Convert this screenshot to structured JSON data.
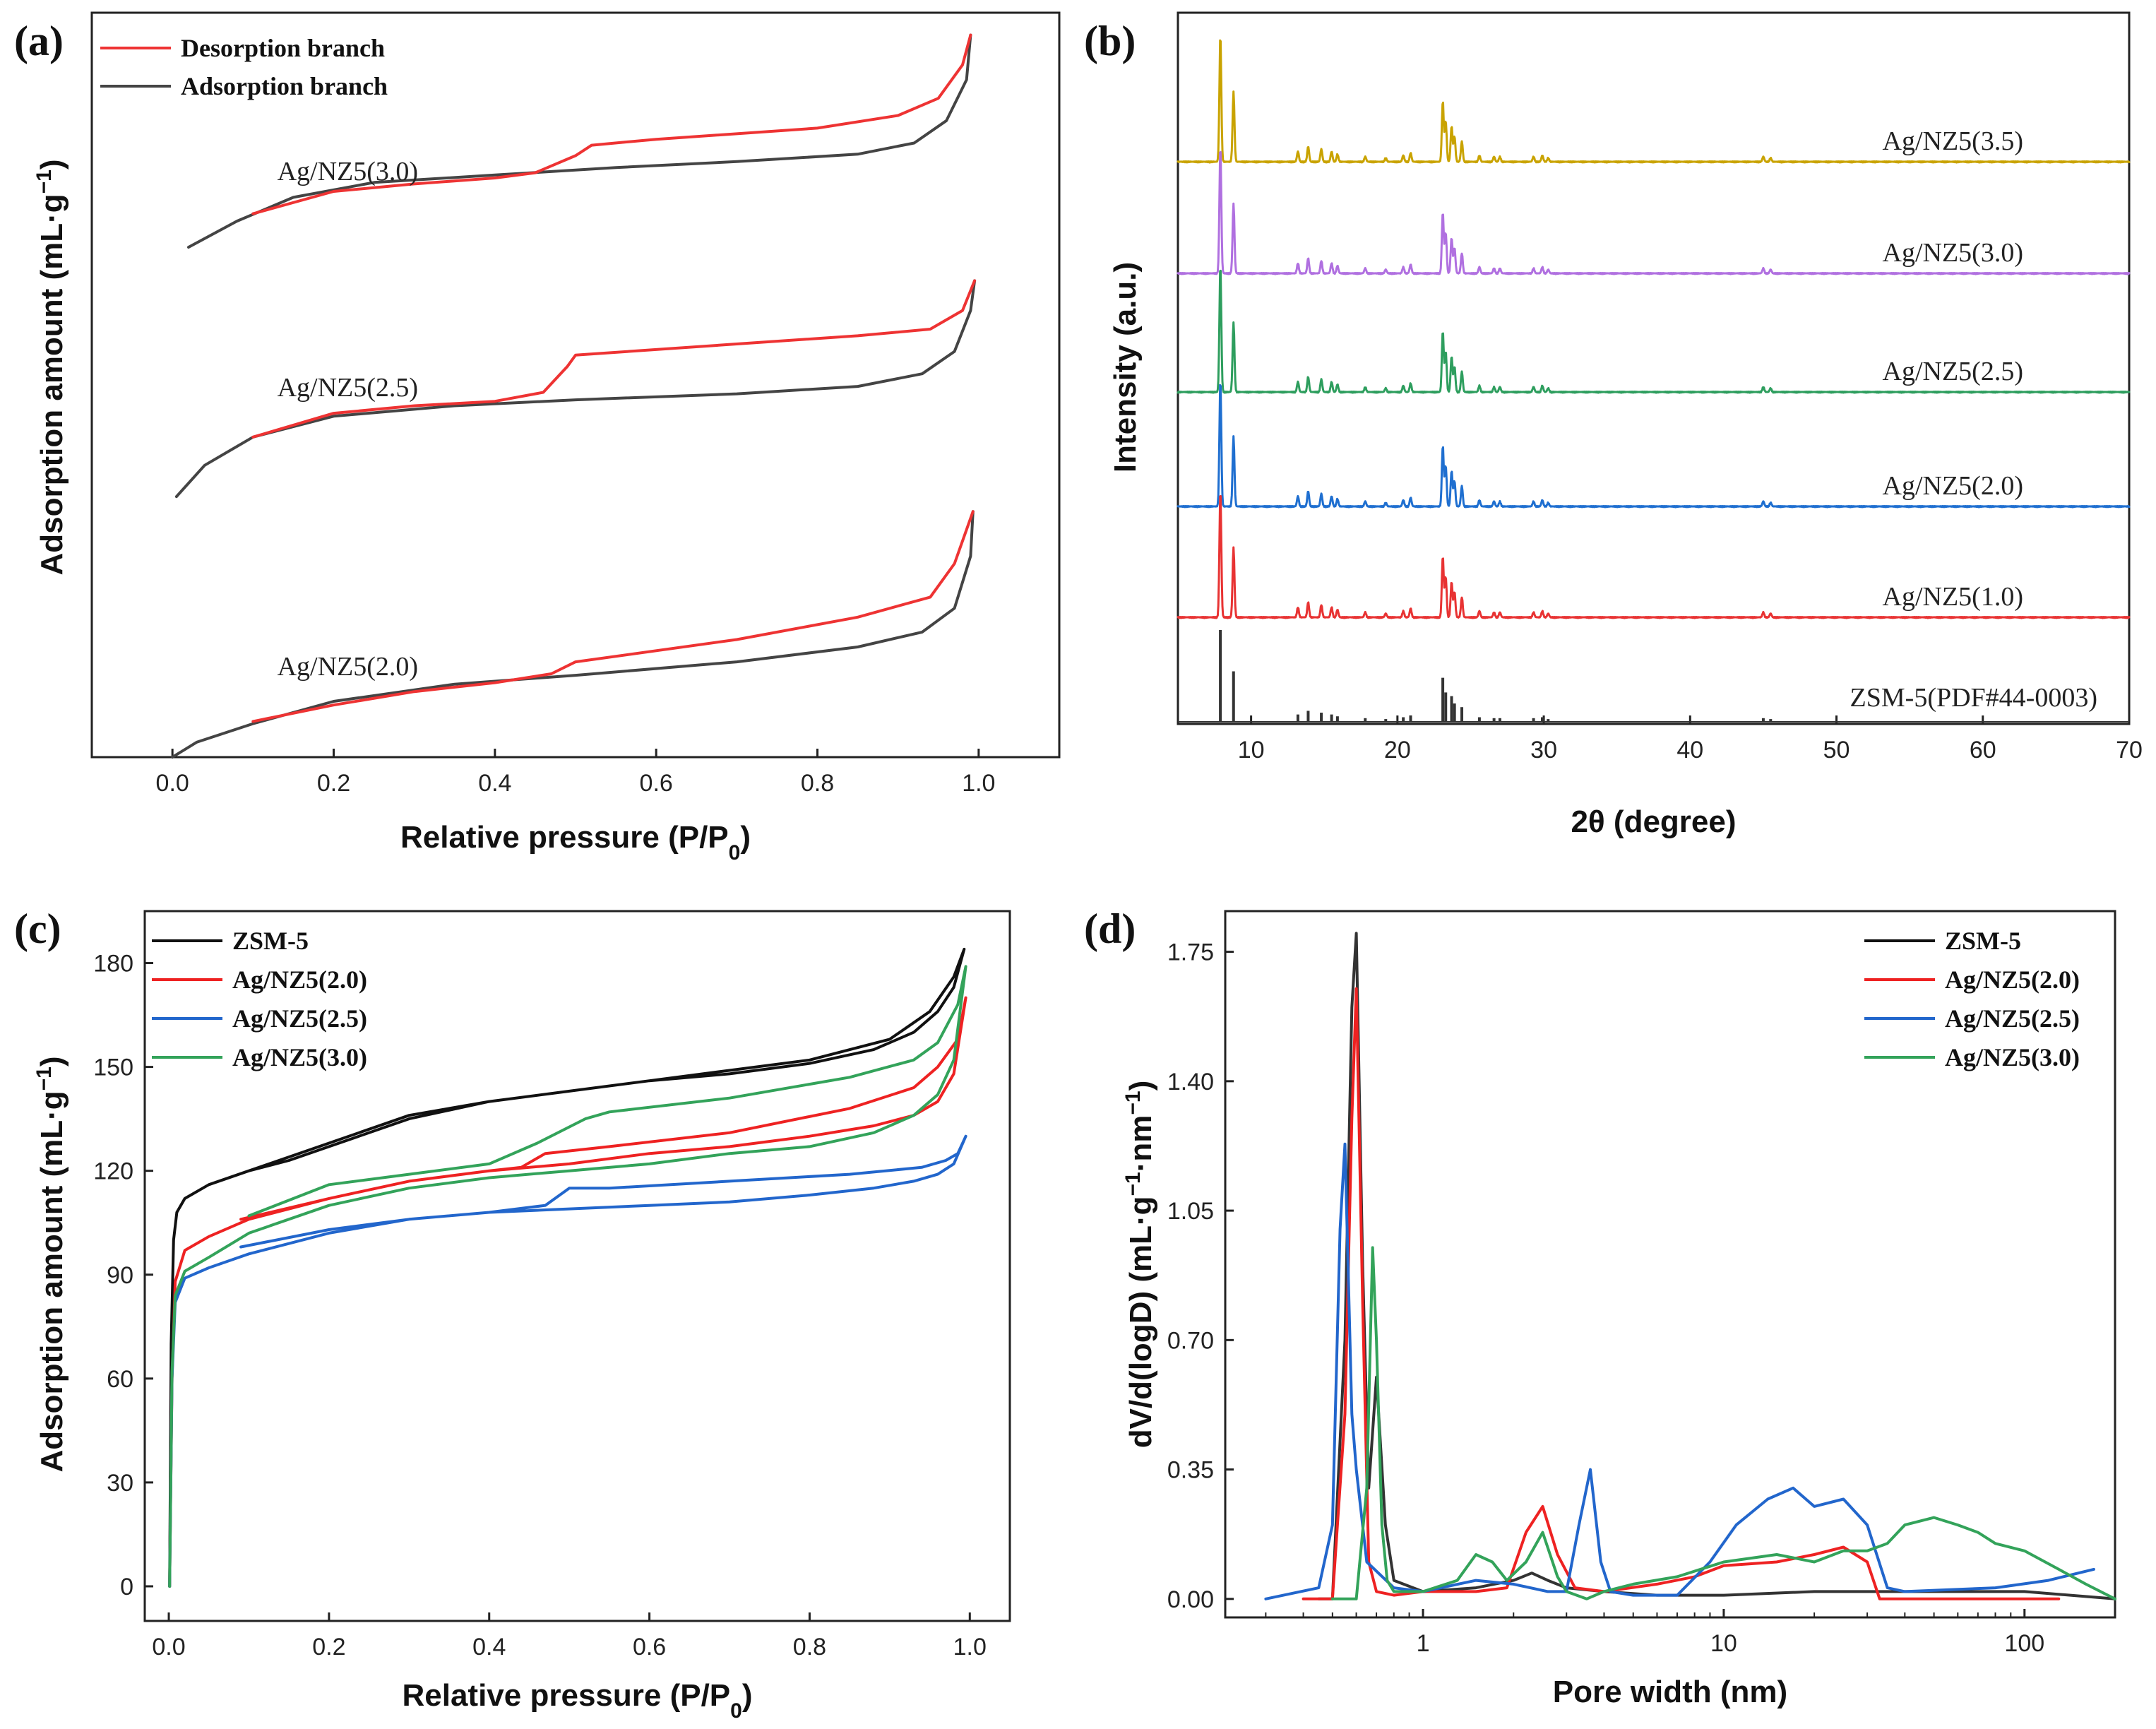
{
  "colors": {
    "black": "#222222",
    "red": "#ee3333",
    "blue": "#2266cc",
    "green": "#33a35a",
    "gold": "#c9a300",
    "purple": "#b070e0",
    "xrd_green": "#2e9e5e",
    "xrd_blue": "#1f6fd0",
    "xrd_red": "#e83333",
    "xrd_ref": "#333333"
  },
  "chart_data": [
    {
      "panel": "(a)",
      "type": "line",
      "xlabel": "Relative pressure (P/P",
      "xlabel_sub": "0",
      "xlabel_end": ")",
      "ylabel": "Adsorption amount (mL·g",
      "ylabel_sup": "−1",
      "ylabel_end": ")",
      "xlim": [
        -0.1,
        1.1
      ],
      "ylim": [
        0,
        1
      ],
      "xticks": [
        0.0,
        0.2,
        0.4,
        0.6,
        0.8,
        1.0
      ],
      "xtick_labels": [
        "0.0",
        "0.2",
        "0.4",
        "0.6",
        "0.8",
        "1.0"
      ],
      "yticks_shown": false,
      "legend": [
        {
          "label": "Desorption branch",
          "color": "#ee3333"
        },
        {
          "label": "Adsorption branch",
          "color": "#444444"
        }
      ],
      "series_labels": [
        {
          "text": "Ag/NZ5(3.0)",
          "x": 0.13,
          "y": 0.775
        },
        {
          "text": "Ag/NZ5(2.5)",
          "x": 0.13,
          "y": 0.485
        },
        {
          "text": "Ag/NZ5(2.0)",
          "x": 0.13,
          "y": 0.11
        }
      ],
      "series": [
        {
          "name": "Ag/NZ5(3.0) adsorption",
          "color": "#444444",
          "x": [
            0.02,
            0.08,
            0.15,
            0.25,
            0.4,
            0.55,
            0.7,
            0.85,
            0.92,
            0.96,
            0.985,
            0.99
          ],
          "y": [
            0.685,
            0.72,
            0.752,
            0.772,
            0.782,
            0.792,
            0.8,
            0.81,
            0.825,
            0.855,
            0.91,
            0.97
          ]
        },
        {
          "name": "Ag/NZ5(3.0) desorption",
          "color": "#ee3333",
          "x": [
            0.99,
            0.98,
            0.95,
            0.9,
            0.8,
            0.6,
            0.52,
            0.5,
            0.45,
            0.4,
            0.3,
            0.2,
            0.1
          ],
          "y": [
            0.97,
            0.93,
            0.885,
            0.862,
            0.845,
            0.83,
            0.822,
            0.808,
            0.785,
            0.778,
            0.77,
            0.76,
            0.73
          ]
        },
        {
          "name": "Ag/NZ5(2.5) adsorption",
          "color": "#444444",
          "x": [
            0.005,
            0.04,
            0.1,
            0.2,
            0.35,
            0.5,
            0.7,
            0.85,
            0.93,
            0.97,
            0.99,
            0.995
          ],
          "y": [
            0.35,
            0.392,
            0.43,
            0.458,
            0.472,
            0.48,
            0.488,
            0.498,
            0.515,
            0.545,
            0.6,
            0.64
          ]
        },
        {
          "name": "Ag/NZ5(2.5) desorption",
          "color": "#ee3333",
          "x": [
            0.995,
            0.98,
            0.94,
            0.85,
            0.7,
            0.5,
            0.49,
            0.46,
            0.4,
            0.3,
            0.2,
            0.1
          ],
          "y": [
            0.64,
            0.6,
            0.575,
            0.566,
            0.555,
            0.54,
            0.525,
            0.49,
            0.478,
            0.472,
            0.462,
            0.43
          ]
        },
        {
          "name": "Ag/NZ5(2.0) adsorption",
          "color": "#444444",
          "x": [
            0.0,
            0.03,
            0.1,
            0.2,
            0.35,
            0.5,
            0.7,
            0.85,
            0.93,
            0.97,
            0.99,
            0.993
          ],
          "y": [
            0.0,
            0.02,
            0.045,
            0.075,
            0.098,
            0.11,
            0.128,
            0.148,
            0.168,
            0.2,
            0.27,
            0.33
          ]
        },
        {
          "name": "Ag/NZ5(2.0) desorption",
          "color": "#ee3333",
          "x": [
            0.993,
            0.97,
            0.94,
            0.85,
            0.7,
            0.5,
            0.47,
            0.4,
            0.3,
            0.2,
            0.1
          ],
          "y": [
            0.33,
            0.26,
            0.215,
            0.188,
            0.158,
            0.128,
            0.112,
            0.1,
            0.088,
            0.07,
            0.048
          ]
        }
      ]
    },
    {
      "panel": "(b)",
      "type": "line",
      "xlabel": "2θ (degree)",
      "ylabel": "Intensity (a.u.)",
      "xlim": [
        5,
        70
      ],
      "xticks": [
        10,
        20,
        30,
        40,
        50,
        60,
        70
      ],
      "xtick_labels": [
        "10",
        "20",
        "30",
        "40",
        "50",
        "60",
        "70"
      ],
      "yticks_shown": false,
      "peaks_2theta": [
        7.9,
        8.8,
        13.2,
        13.9,
        14.8,
        15.5,
        15.9,
        17.8,
        19.2,
        20.4,
        20.9,
        23.1,
        23.3,
        23.7,
        23.9,
        24.4,
        25.6,
        26.6,
        27.0,
        29.3,
        29.9,
        30.3,
        45.0,
        45.5
      ],
      "peak_heights": [
        1.0,
        0.55,
        0.08,
        0.12,
        0.1,
        0.08,
        0.06,
        0.04,
        0.03,
        0.05,
        0.07,
        0.48,
        0.32,
        0.28,
        0.2,
        0.16,
        0.05,
        0.04,
        0.04,
        0.04,
        0.05,
        0.03,
        0.04,
        0.03
      ],
      "series": [
        {
          "name": "Ag/NZ5(3.5)",
          "color": "#c9a300"
        },
        {
          "name": "Ag/NZ5(3.0)",
          "color": "#b070e0"
        },
        {
          "name": "Ag/NZ5(2.5)",
          "color": "#2e9e5e"
        },
        {
          "name": "Ag/NZ5(2.0)",
          "color": "#1f6fd0"
        },
        {
          "name": "Ag/NZ5(1.0)",
          "color": "#e83333"
        },
        {
          "name": "ZSM-5(PDF#44-0003)",
          "color": "#333333"
        }
      ]
    },
    {
      "panel": "(c)",
      "type": "line",
      "xlabel": "Relative pressure (P/P",
      "xlabel_sub": "0",
      "xlabel_end": ")",
      "ylabel": "Adsorption amount (mL·g",
      "ylabel_sup": "−1",
      "ylabel_end": ")",
      "xlim": [
        -0.03,
        1.05
      ],
      "ylim": [
        -10,
        195
      ],
      "xticks": [
        0.0,
        0.2,
        0.4,
        0.6,
        0.8,
        1.0
      ],
      "xtick_labels": [
        "0.0",
        "0.2",
        "0.4",
        "0.6",
        "0.8",
        "1.0"
      ],
      "yticks": [
        0,
        30,
        60,
        90,
        120,
        150,
        180
      ],
      "ytick_labels": [
        "0",
        "30",
        "60",
        "90",
        "120",
        "150",
        "180"
      ],
      "legend": [
        {
          "label": "ZSM-5",
          "color": "#111111"
        },
        {
          "label": "Ag/NZ5(2.0)",
          "color": "#ee2222"
        },
        {
          "label": "Ag/NZ5(2.5)",
          "color": "#2266cc"
        },
        {
          "label": "Ag/NZ5(3.0)",
          "color": "#33a35a"
        }
      ],
      "series": [
        {
          "name": "ZSM-5",
          "color": "#111111",
          "x": [
            0.001,
            0.003,
            0.006,
            0.01,
            0.02,
            0.05,
            0.1,
            0.2,
            0.3,
            0.4,
            0.5,
            0.6,
            0.7,
            0.8,
            0.88,
            0.93,
            0.96,
            0.98,
            0.993,
            0.98,
            0.95,
            0.9,
            0.8,
            0.7,
            0.6,
            0.5,
            0.4,
            0.3,
            0.2,
            0.15,
            0.1
          ],
          "y": [
            0,
            70,
            100,
            108,
            112,
            116,
            120,
            128,
            136,
            140,
            143,
            146,
            148,
            151,
            155,
            160,
            166,
            173,
            184,
            176,
            166,
            158,
            152,
            149,
            146,
            143,
            140,
            135,
            127,
            123,
            120
          ]
        },
        {
          "name": "Ag/NZ5(2.0)",
          "color": "#ee2222",
          "x": [
            0.001,
            0.004,
            0.008,
            0.02,
            0.05,
            0.1,
            0.2,
            0.3,
            0.4,
            0.5,
            0.6,
            0.7,
            0.8,
            0.88,
            0.93,
            0.96,
            0.98,
            0.995,
            0.985,
            0.96,
            0.93,
            0.85,
            0.7,
            0.55,
            0.47,
            0.44,
            0.4,
            0.3,
            0.2,
            0.09
          ],
          "y": [
            0,
            60,
            88,
            97,
            101,
            106,
            112,
            117,
            120,
            122,
            125,
            127,
            130,
            133,
            136,
            140,
            148,
            170,
            158,
            150,
            144,
            138,
            131,
            127,
            125,
            121,
            120,
            117,
            112,
            106
          ]
        },
        {
          "name": "Ag/NZ5(2.5)",
          "color": "#2266cc",
          "x": [
            0.001,
            0.004,
            0.008,
            0.02,
            0.05,
            0.1,
            0.2,
            0.3,
            0.4,
            0.5,
            0.6,
            0.7,
            0.8,
            0.88,
            0.93,
            0.96,
            0.98,
            0.995,
            0.985,
            0.97,
            0.94,
            0.85,
            0.7,
            0.55,
            0.5,
            0.47,
            0.4,
            0.3,
            0.2,
            0.09
          ],
          "y": [
            0,
            60,
            82,
            89,
            92,
            96,
            102,
            106,
            108,
            109,
            110,
            111,
            113,
            115,
            117,
            119,
            122,
            130,
            125,
            123,
            121,
            119,
            117,
            115,
            115,
            110,
            108,
            106,
            103,
            98
          ]
        },
        {
          "name": "Ag/NZ5(3.0)",
          "color": "#33a35a",
          "x": [
            0.001,
            0.004,
            0.008,
            0.02,
            0.05,
            0.1,
            0.2,
            0.3,
            0.4,
            0.5,
            0.6,
            0.7,
            0.8,
            0.88,
            0.93,
            0.96,
            0.98,
            0.995,
            0.985,
            0.96,
            0.93,
            0.85,
            0.7,
            0.55,
            0.52,
            0.46,
            0.4,
            0.3,
            0.2,
            0.1
          ],
          "y": [
            0,
            62,
            84,
            91,
            95,
            102,
            110,
            115,
            118,
            120,
            122,
            125,
            127,
            131,
            136,
            142,
            152,
            179,
            168,
            157,
            152,
            147,
            141,
            137,
            135,
            128,
            122,
            119,
            116,
            107
          ]
        }
      ]
    },
    {
      "panel": "(d)",
      "type": "line",
      "xscale": "log",
      "xlabel": "Pore width (nm)",
      "ylabel": "dV/d(logD) (mL·g",
      "ylabel_sup": "−1",
      "ylabel_mid": "·nm",
      "ylabel_sup2": "−1",
      "ylabel_end": ")",
      "xlim": [
        0.22,
        200
      ],
      "ylim": [
        -0.05,
        1.86
      ],
      "xticks": [
        1,
        10,
        100
      ],
      "xtick_labels": [
        "1",
        "10",
        "100"
      ],
      "yticks": [
        0.0,
        0.35,
        0.7,
        1.05,
        1.4,
        1.75
      ],
      "ytick_labels": [
        "0.00",
        "0.35",
        "0.70",
        "1.05",
        "1.40",
        "1.75"
      ],
      "legend": [
        {
          "label": "ZSM-5",
          "color": "#111111"
        },
        {
          "label": "Ag/NZ5(2.0)",
          "color": "#ee2222"
        },
        {
          "label": "Ag/NZ5(2.5)",
          "color": "#2266cc"
        },
        {
          "label": "Ag/NZ5(3.0)",
          "color": "#33a35a"
        }
      ],
      "series": [
        {
          "name": "ZSM-5",
          "color": "#333333",
          "x": [
            0.45,
            0.5,
            0.55,
            0.58,
            0.6,
            0.63,
            0.66,
            0.7,
            0.75,
            0.8,
            1.0,
            1.5,
            2.0,
            2.3,
            2.6,
            3.0,
            4.0,
            6.0,
            10,
            20,
            50,
            100,
            200
          ],
          "y": [
            0.0,
            0.0,
            0.7,
            1.6,
            1.8,
            0.9,
            0.3,
            0.6,
            0.2,
            0.05,
            0.02,
            0.03,
            0.05,
            0.07,
            0.05,
            0.03,
            0.02,
            0.01,
            0.01,
            0.02,
            0.02,
            0.02,
            0.0
          ]
        },
        {
          "name": "Ag/NZ5(2.0)",
          "color": "#ee2222",
          "x": [
            0.4,
            0.5,
            0.55,
            0.58,
            0.6,
            0.63,
            0.66,
            0.7,
            0.8,
            1.0,
            1.5,
            1.9,
            2.2,
            2.5,
            2.8,
            3.2,
            4.0,
            6.0,
            8.0,
            10,
            15,
            20,
            25,
            30,
            33,
            40,
            80,
            130
          ],
          "y": [
            0.0,
            0.0,
            0.5,
            1.3,
            1.65,
            0.8,
            0.1,
            0.02,
            0.01,
            0.02,
            0.02,
            0.03,
            0.18,
            0.25,
            0.12,
            0.03,
            0.02,
            0.04,
            0.06,
            0.09,
            0.1,
            0.12,
            0.14,
            0.1,
            0.0,
            0.0,
            0.0,
            0.0
          ]
        },
        {
          "name": "Ag/NZ5(2.5)",
          "color": "#2266cc",
          "x": [
            0.3,
            0.45,
            0.5,
            0.53,
            0.55,
            0.58,
            0.6,
            0.65,
            0.8,
            1.0,
            1.5,
            2.0,
            2.6,
            3.0,
            3.3,
            3.6,
            3.9,
            4.2,
            5.0,
            7.0,
            9.0,
            11,
            14,
            17,
            20,
            25,
            30,
            35,
            40,
            80,
            120,
            170
          ],
          "y": [
            0.0,
            0.03,
            0.2,
            1.0,
            1.23,
            0.5,
            0.35,
            0.1,
            0.03,
            0.02,
            0.05,
            0.04,
            0.02,
            0.02,
            0.2,
            0.35,
            0.1,
            0.02,
            0.01,
            0.01,
            0.1,
            0.2,
            0.27,
            0.3,
            0.25,
            0.27,
            0.2,
            0.03,
            0.02,
            0.03,
            0.05,
            0.08
          ]
        },
        {
          "name": "Ag/NZ5(3.0)",
          "color": "#33a35a",
          "x": [
            0.5,
            0.6,
            0.65,
            0.68,
            0.7,
            0.73,
            0.76,
            0.8,
            1.0,
            1.3,
            1.5,
            1.7,
            1.9,
            2.2,
            2.5,
            2.8,
            3.0,
            3.5,
            4.0,
            5.0,
            7.0,
            10,
            15,
            20,
            25,
            30,
            35,
            40,
            50,
            60,
            70,
            80,
            100,
            130,
            160,
            200
          ],
          "y": [
            0.0,
            0.0,
            0.3,
            0.95,
            0.7,
            0.2,
            0.05,
            0.02,
            0.02,
            0.05,
            0.12,
            0.1,
            0.05,
            0.1,
            0.18,
            0.06,
            0.02,
            0.0,
            0.02,
            0.04,
            0.06,
            0.1,
            0.12,
            0.1,
            0.13,
            0.13,
            0.15,
            0.2,
            0.22,
            0.2,
            0.18,
            0.15,
            0.13,
            0.08,
            0.04,
            0.0
          ]
        }
      ]
    }
  ]
}
